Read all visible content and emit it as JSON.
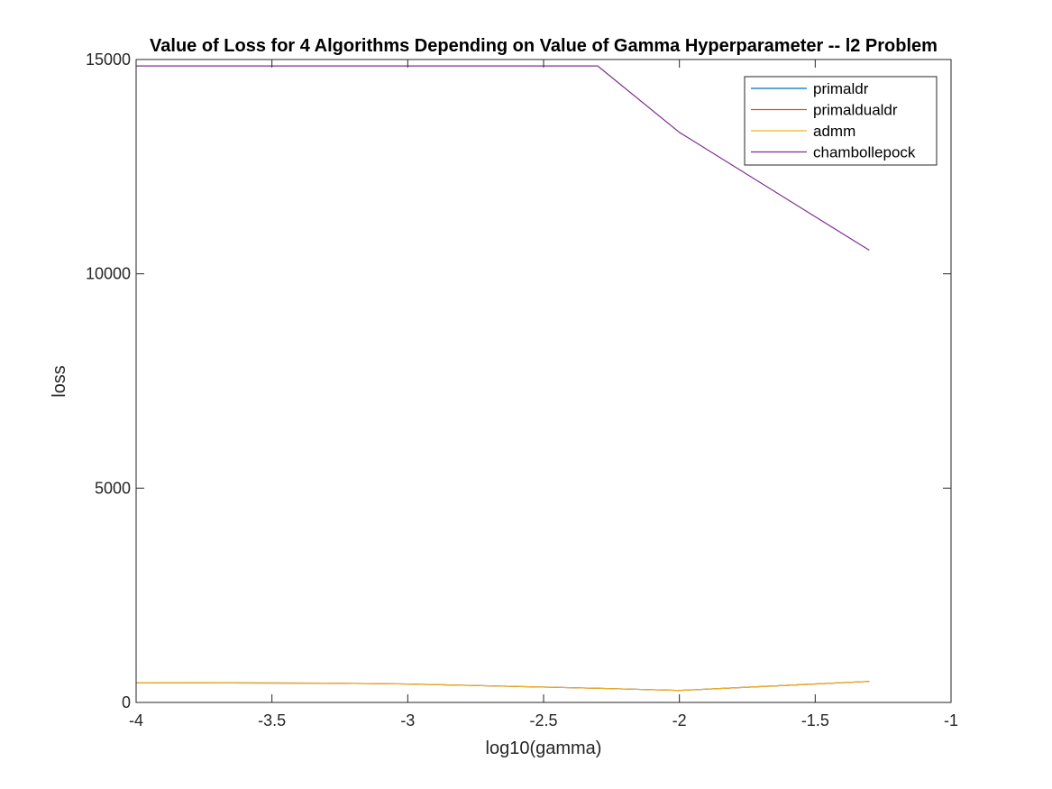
{
  "chart_data": {
    "type": "line",
    "title": "Value of Loss for 4 Algorithms Depending on Value of Gamma Hyperparameter -- l2 Problem",
    "xlabel": "log10(gamma)",
    "ylabel": "loss",
    "xlim": [
      -4,
      -1
    ],
    "ylim": [
      0,
      15000
    ],
    "xticks": [
      -4,
      -3.5,
      -3,
      -2.5,
      -2,
      -1.5,
      -1
    ],
    "xtick_labels": [
      "-4",
      "-3.5",
      "-3",
      "-2.5",
      "-2",
      "-1.5",
      "-1"
    ],
    "yticks": [
      0,
      5000,
      10000,
      15000
    ],
    "ytick_labels": [
      "0",
      "5000",
      "10000",
      "15000"
    ],
    "grid": false,
    "legend_position": "top-right",
    "x": [
      -4,
      -3.301,
      -3,
      -2.301,
      -2,
      -1.301
    ],
    "series": [
      {
        "name": "primaldr",
        "color": "#0072BD",
        "values": [
          460,
          450,
          430,
          330,
          280,
          490
        ]
      },
      {
        "name": "primaldualdr",
        "color": "#D95319",
        "values": [
          460,
          450,
          430,
          330,
          280,
          490
        ]
      },
      {
        "name": "admm",
        "color": "#EDB120",
        "values": [
          460,
          450,
          430,
          330,
          280,
          490
        ]
      },
      {
        "name": "chambollepock",
        "color": "#7E2F8E",
        "values": [
          14850,
          14850,
          14850,
          14850,
          13300,
          10550
        ]
      }
    ]
  }
}
